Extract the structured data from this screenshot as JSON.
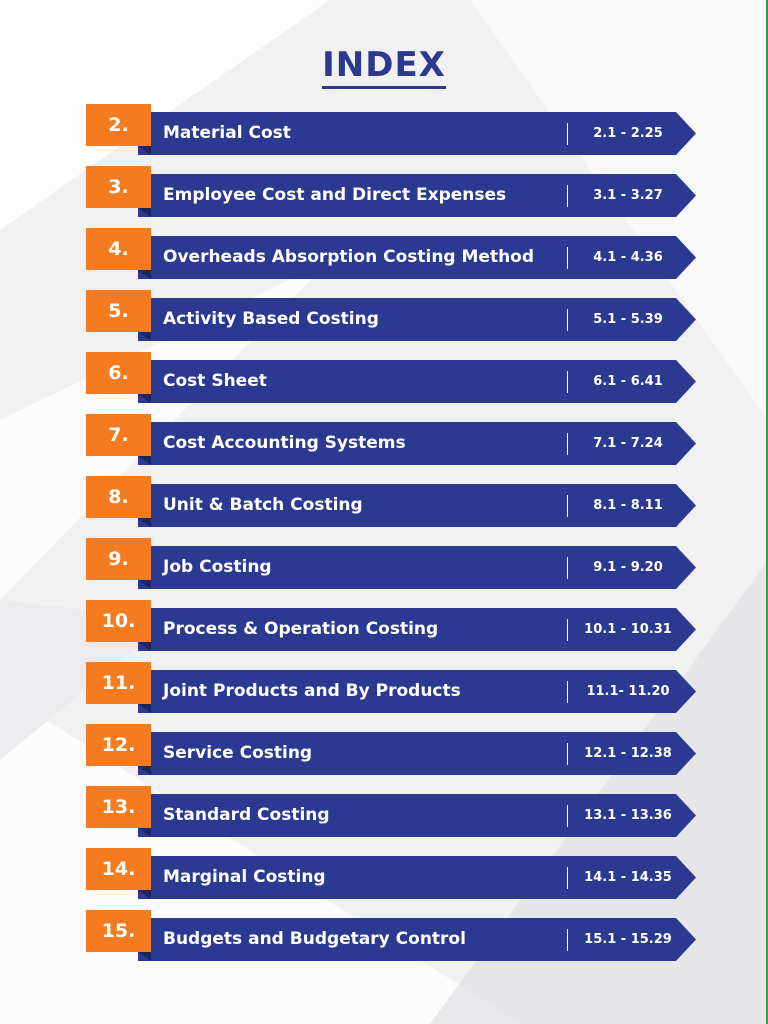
{
  "title": "INDEX",
  "colors": {
    "banner": "#2b3990",
    "number_box": "#f47b20",
    "title": "#2b3990"
  },
  "entries": [
    {
      "number": "2.",
      "name": "Material Cost",
      "pages": "2.1 - 2.25"
    },
    {
      "number": "3.",
      "name": "Employee Cost and Direct Expenses",
      "pages": "3.1 - 3.27"
    },
    {
      "number": "4.",
      "name": "Overheads Absorption Costing Method",
      "pages": "4.1 - 4.36"
    },
    {
      "number": "5.",
      "name": "Activity Based Costing",
      "pages": "5.1 - 5.39"
    },
    {
      "number": "6.",
      "name": "Cost Sheet",
      "pages": "6.1 - 6.41"
    },
    {
      "number": "7.",
      "name": "Cost Accounting Systems",
      "pages": "7.1 - 7.24"
    },
    {
      "number": "8.",
      "name": "Unit & Batch Costing",
      "pages": "8.1 - 8.11"
    },
    {
      "number": "9.",
      "name": "Job Costing",
      "pages": "9.1 - 9.20"
    },
    {
      "number": "10.",
      "name": "Process & Operation Costing",
      "pages": "10.1 - 10.31"
    },
    {
      "number": "11.",
      "name": "Joint Products and By Products",
      "pages": "11.1- 11.20"
    },
    {
      "number": "12.",
      "name": "Service Costing",
      "pages": "12.1 - 12.38"
    },
    {
      "number": "13.",
      "name": "Standard Costing",
      "pages": "13.1 - 13.36"
    },
    {
      "number": "14.",
      "name": "Marginal Costing",
      "pages": "14.1 - 14.35"
    },
    {
      "number": "15.",
      "name": "Budgets and Budgetary Control",
      "pages": "15.1 - 15.29"
    }
  ]
}
